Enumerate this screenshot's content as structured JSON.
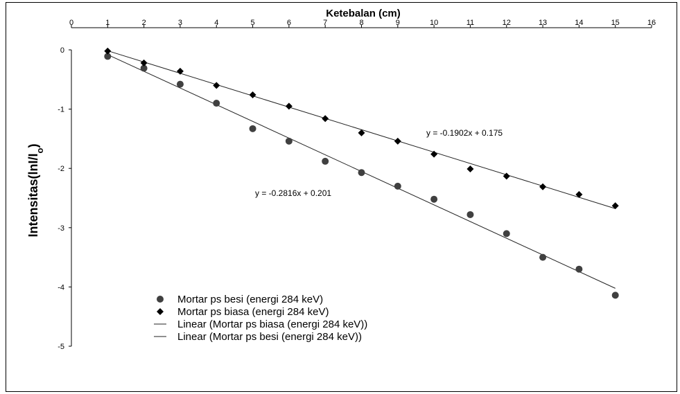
{
  "chart_data": {
    "type": "scatter",
    "xlabel": "Ketebalan (cm)",
    "ylabel_main": "Intensitas(lnI/I",
    "ylabel_sub": "o",
    "ylabel_close": ")",
    "xlim": [
      0,
      16
    ],
    "ylim": [
      -5,
      0
    ],
    "xticks": [
      "0",
      "1",
      "2",
      "3",
      "4",
      "5",
      "6",
      "7",
      "8",
      "9",
      "10",
      "11",
      "12",
      "13",
      "14",
      "15",
      "16"
    ],
    "yticks": [
      "0",
      "-1",
      "-2",
      "-3",
      "-4",
      "-5"
    ],
    "x_axis_position": "top",
    "grid": false,
    "series": [
      {
        "name": "Mortar ps besi (energi 284 keV)",
        "marker": "circle",
        "color": "#404040",
        "x": [
          1,
          2,
          3,
          4,
          5,
          6,
          7,
          8,
          9,
          10,
          11,
          12,
          13,
          14,
          15
        ],
        "y": [
          -0.11,
          -0.31,
          -0.58,
          -0.9,
          -1.33,
          -1.54,
          -1.88,
          -2.07,
          -2.3,
          -2.52,
          -2.78,
          -3.1,
          -3.5,
          -3.7,
          -4.14
        ]
      },
      {
        "name": "Mortar ps biasa (energi 284 keV)",
        "marker": "diamond",
        "color": "#000000",
        "x": [
          1,
          2,
          3,
          4,
          5,
          6,
          7,
          8,
          9,
          10,
          11,
          12,
          13,
          14,
          15
        ],
        "y": [
          -0.02,
          -0.22,
          -0.36,
          -0.6,
          -0.76,
          -0.95,
          -1.16,
          -1.4,
          -1.54,
          -1.76,
          -2.01,
          -2.13,
          -2.31,
          -2.44,
          -2.63
        ]
      }
    ],
    "trendlines": [
      {
        "name": "Linear (Mortar ps biasa (energi 284 keV))",
        "slope": -0.1902,
        "intercept": 0.175,
        "x_range": [
          1,
          15
        ],
        "equation": "y = -0.1902x + 0.175"
      },
      {
        "name": "Linear (Mortar ps besi (energi 284 keV))",
        "slope": -0.2816,
        "intercept": 0.201,
        "x_range": [
          1,
          15
        ],
        "equation": "y = -0.2816x + 0.201"
      }
    ],
    "legend": [
      "Mortar ps besi (energi 284 keV)",
      "Mortar ps biasa (energi 284 keV)",
      "Linear (Mortar ps biasa (energi 284 keV))",
      "Linear (Mortar ps besi (energi 284 keV))"
    ],
    "legend_position": "bottom-left"
  }
}
